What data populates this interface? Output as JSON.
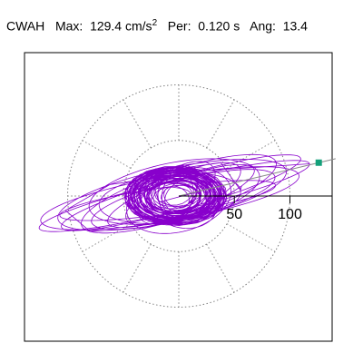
{
  "header": {
    "station": "CWAH",
    "max_label": "Max:",
    "max_value": "129.4",
    "max_unit": "cm/s",
    "max_unit_exp": "2",
    "per_label": "Per:",
    "per_value": "0.120 s",
    "ang_label": "Ang:",
    "ang_value": "13.4"
  },
  "colors": {
    "trace": "#8800cc",
    "marker": "#14a07a",
    "grid": "#808080",
    "axis": "#000000",
    "frame": "#000000"
  },
  "chart_data": {
    "type": "scatter",
    "subtype": "polar particle-motion plot",
    "radial_rings": [
      50,
      100
    ],
    "angular_spokes_deg": [
      0,
      30,
      60,
      90,
      120,
      150,
      180,
      210,
      240,
      270,
      300,
      330
    ],
    "tick_labels": [
      "50",
      "100"
    ],
    "range": [
      -130,
      130
    ],
    "peak": {
      "x": 125.9,
      "y": 30.0,
      "amplitude": 129.4
    },
    "angle_deg": 13.4,
    "ellipses": [
      {
        "a": 125,
        "b": 14,
        "rot": 13.4,
        "cx": -4,
        "cy": 0
      },
      {
        "a": 118,
        "b": 20,
        "rot": 10.0,
        "cx": -8,
        "cy": -2
      },
      {
        "a": 112,
        "b": 15,
        "rot": 16.0,
        "cx": 2,
        "cy": 3
      },
      {
        "a": 105,
        "b": 24,
        "rot": 12.0,
        "cx": -6,
        "cy": 1
      },
      {
        "a": 98,
        "b": 12,
        "rot": 8.0,
        "cx": -10,
        "cy": -4
      },
      {
        "a": 92,
        "b": 22,
        "rot": 18.0,
        "cx": 0,
        "cy": 2
      },
      {
        "a": 85,
        "b": 18,
        "rot": 14.0,
        "cx": 4,
        "cy": -3
      },
      {
        "a": 78,
        "b": 26,
        "rot": 11.0,
        "cx": -4,
        "cy": 4
      },
      {
        "a": 70,
        "b": 16,
        "rot": 20.0,
        "cx": 2,
        "cy": 0
      },
      {
        "a": 64,
        "b": 22,
        "rot": 6.0,
        "cx": -8,
        "cy": -2
      },
      {
        "a": 56,
        "b": 18,
        "rot": 24.0,
        "cx": 4,
        "cy": 2
      },
      {
        "a": 48,
        "b": 28,
        "rot": 15.0,
        "cx": 0,
        "cy": -4
      },
      {
        "a": 40,
        "b": 20,
        "rot": 35.0,
        "cx": -2,
        "cy": 3
      },
      {
        "a": 34,
        "b": 26,
        "rot": -20.0,
        "cx": 2,
        "cy": -2
      },
      {
        "a": 28,
        "b": 18,
        "rot": 60.0,
        "cx": -4,
        "cy": 2
      },
      {
        "a": 24,
        "b": 20,
        "rot": -50.0,
        "cx": 3,
        "cy": -3
      },
      {
        "a": 20,
        "b": 14,
        "rot": 80.0,
        "cx": -1,
        "cy": 1
      },
      {
        "a": 16,
        "b": 12,
        "rot": 40.0,
        "cx": 2,
        "cy": 0
      },
      {
        "a": 12,
        "b": 9,
        "rot": -30.0,
        "cx": -2,
        "cy": -1
      }
    ]
  }
}
